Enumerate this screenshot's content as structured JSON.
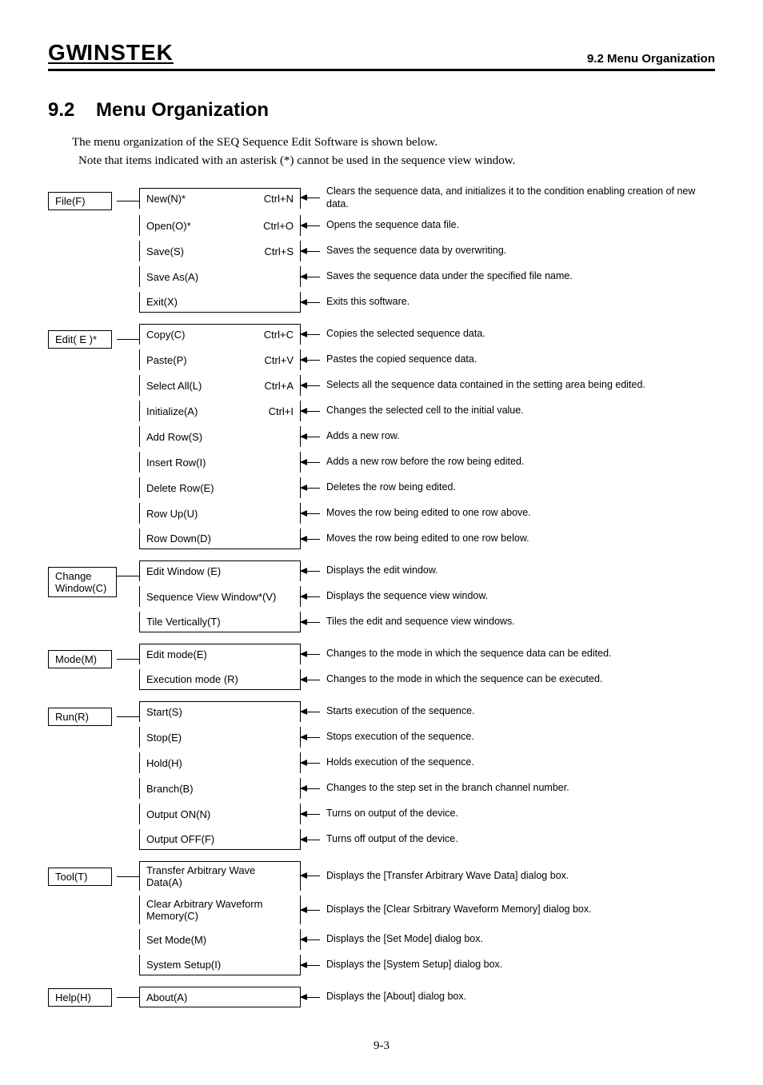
{
  "header": {
    "logo": "GℒINSTEK",
    "right": "9.2 Menu Organization"
  },
  "section": {
    "number": "9.2",
    "title": "Menu Organization"
  },
  "intro": {
    "line1": "The menu organization of the SEQ Sequence Edit Software is shown below.",
    "line2": "Note that items indicated with an asterisk (*) cannot be used in the sequence view window."
  },
  "menus": [
    {
      "label": "File(F)",
      "items": [
        {
          "name": "New(N)*",
          "shortcut": "Ctrl+N",
          "desc": "Clears the sequence data, and initializes it to the condition enabling creation of new data."
        },
        {
          "name": "Open(O)*",
          "shortcut": "Ctrl+O",
          "desc": "Opens the sequence data file."
        },
        {
          "name": "Save(S)",
          "shortcut": "Ctrl+S",
          "desc": "Saves the sequence data by overwriting."
        },
        {
          "name": "Save As(A)",
          "shortcut": "",
          "desc": "Saves the sequence data under the specified file name."
        },
        {
          "name": "Exit(X)",
          "shortcut": "",
          "desc": "Exits this software."
        }
      ]
    },
    {
      "label": "Edit( E )*",
      "items": [
        {
          "name": "Copy(C)",
          "shortcut": "Ctrl+C",
          "desc": "Copies the selected sequence data."
        },
        {
          "name": "Paste(P)",
          "shortcut": "Ctrl+V",
          "desc": "Pastes the copied sequence data."
        },
        {
          "name": "Select All(L)",
          "shortcut": "Ctrl+A",
          "desc": "Selects all the sequence data contained in the setting area being edited."
        },
        {
          "name": "Initialize(A)",
          "shortcut": "Ctrl+I",
          "desc": "Changes the selected cell to the initial value."
        },
        {
          "name": "Add Row(S)",
          "shortcut": "",
          "desc": "Adds a new row."
        },
        {
          "name": "Insert Row(I)",
          "shortcut": "",
          "desc": "Adds a new row before the row being edited."
        },
        {
          "name": "Delete Row(E)",
          "shortcut": "",
          "desc": "Deletes the row being edited."
        },
        {
          "name": "Row Up(U)",
          "shortcut": "",
          "desc": "Moves the row being edited to one row above."
        },
        {
          "name": "Row Down(D)",
          "shortcut": "",
          "desc": "Moves the row being edited to one row below."
        }
      ]
    },
    {
      "label": "Change Window(C)",
      "items": [
        {
          "name": "Edit Window (E)",
          "shortcut": "",
          "desc": "Displays the edit window."
        },
        {
          "name": "Sequence View Window*(V)",
          "shortcut": "",
          "desc": "Displays the sequence view window."
        },
        {
          "name": "Tile Vertically(T)",
          "shortcut": "",
          "desc": "Tiles the edit and sequence view windows."
        }
      ]
    },
    {
      "label": "Mode(M)",
      "items": [
        {
          "name": "Edit mode(E)",
          "shortcut": "",
          "desc": "Changes to the mode in which the sequence data can be edited."
        },
        {
          "name": "Execution mode (R)",
          "shortcut": "",
          "desc": "Changes to the mode in which the sequence can be executed."
        }
      ]
    },
    {
      "label": "Run(R)",
      "items": [
        {
          "name": "Start(S)",
          "shortcut": "",
          "desc": "Starts execution of the sequence."
        },
        {
          "name": "Stop(E)",
          "shortcut": "",
          "desc": "Stops execution of the sequence."
        },
        {
          "name": "Hold(H)",
          "shortcut": "",
          "desc": "Holds execution of the sequence."
        },
        {
          "name": "Branch(B)",
          "shortcut": "",
          "desc": "Changes to the step set in the branch channel number."
        },
        {
          "name": "Output ON(N)",
          "shortcut": "",
          "desc": "Turns on output of the device."
        },
        {
          "name": "Output OFF(F)",
          "shortcut": "",
          "desc": "Turns off output of the device."
        }
      ]
    },
    {
      "label": "Tool(T)",
      "items": [
        {
          "name": "Transfer Arbitrary Wave Data(A)",
          "shortcut": "",
          "desc": "Displays the [Transfer Arbitrary Wave Data] dialog box."
        },
        {
          "name": "Clear Arbitrary Waveform Memory(C)",
          "shortcut": "",
          "desc": "Displays the [Clear Srbitrary Waveform Memory] dialog box."
        },
        {
          "name": "Set Mode(M)",
          "shortcut": "",
          "desc": "Displays the [Set Mode] dialog box."
        },
        {
          "name": "System Setup(I)",
          "shortcut": "",
          "desc": "Displays the [System Setup] dialog box."
        }
      ]
    },
    {
      "label": "Help(H)",
      "items": [
        {
          "name": "About(A)",
          "shortcut": "",
          "desc": "Displays the [About] dialog box."
        }
      ]
    }
  ],
  "pageNumber": "9-3"
}
